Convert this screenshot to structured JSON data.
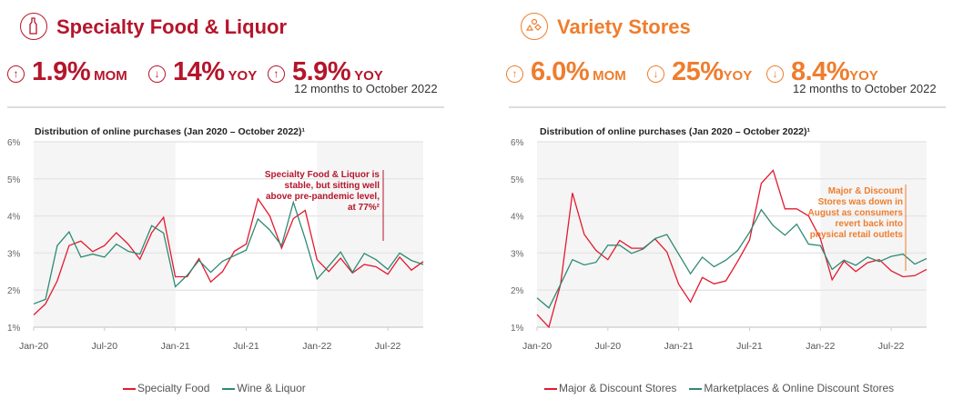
{
  "panels": [
    {
      "title": "Specialty Food & Liquor",
      "icon": "bottle-icon",
      "accent": "#b5152b",
      "stats": [
        {
          "direction": "up",
          "value": "1.9%",
          "unit": "MOM"
        },
        {
          "direction": "down",
          "value": "14%",
          "unit": "YOY"
        },
        {
          "direction": "up",
          "value": "5.9%",
          "unit": "YOY"
        }
      ],
      "stat_note": "12 months to October 2022",
      "chart_title": "Distribution of online purchases (Jan 2020 – October 2022)¹",
      "annotation": "Specialty Food & Liquor is stable, but sitting well above pre-pandemic level, at 77%²",
      "annotation_color": "#b5152b",
      "legend": [
        "Specialty Food",
        "Wine & Liquor"
      ]
    },
    {
      "title": "Variety Stores",
      "icon": "shapes-icon",
      "accent": "#ef7d2d",
      "stats": [
        {
          "direction": "up",
          "value": "6.0%",
          "unit": "MOM"
        },
        {
          "direction": "down",
          "value": "25%",
          "unit": "YOY"
        },
        {
          "direction": "down",
          "value": "8.4%",
          "unit": "YOY"
        }
      ],
      "stat_note": "12 months to October 2022",
      "chart_title": "Distribution of online purchases (Jan 2020 – October 2022)¹",
      "annotation": "Major & Discount Stores was down in August as consumers revert  back into physical retail outlets",
      "annotation_color": "#ef7d2d",
      "legend": [
        "Major & Discount Stores",
        "Marketplaces & Online Discount Stores"
      ]
    }
  ],
  "chart_data": [
    {
      "type": "line",
      "x_start": "Jan-20",
      "x_end": "Oct-22",
      "x_tick_labels": [
        "Jan-20",
        "Jul-20",
        "Jan-21",
        "Jul-21",
        "Jan-22",
        "Jul-22"
      ],
      "y_tick_labels": [
        "1%",
        "2%",
        "3%",
        "4%",
        "5%",
        "6%"
      ],
      "ylim": [
        1,
        6
      ],
      "grid": true,
      "legend_position": "bottom",
      "shaded_periods": [
        [
          "Jan-20",
          "Dec-20"
        ],
        [
          "Jan-22",
          "Oct-22"
        ]
      ],
      "series": [
        {
          "name": "Specialty Food",
          "color": "#e3192f",
          "values": [
            1.33,
            1.63,
            2.25,
            3.2,
            3.32,
            3.04,
            3.2,
            3.55,
            3.24,
            2.83,
            3.55,
            3.96,
            2.36,
            2.36,
            2.85,
            2.22,
            2.5,
            3.05,
            3.24,
            4.46,
            4.0,
            3.13,
            3.93,
            4.15,
            2.82,
            2.5,
            2.86,
            2.46,
            2.69,
            2.63,
            2.43,
            2.89,
            2.54,
            2.77
          ]
        },
        {
          "name": "Wine & Liquor",
          "color": "#2e8a74",
          "values": [
            1.63,
            1.75,
            3.2,
            3.57,
            2.89,
            2.97,
            2.89,
            3.24,
            3.05,
            2.97,
            3.74,
            3.54,
            2.09,
            2.4,
            2.8,
            2.48,
            2.78,
            2.93,
            3.08,
            3.92,
            3.62,
            3.2,
            4.37,
            3.38,
            2.3,
            2.65,
            3.03,
            2.48,
            2.99,
            2.82,
            2.56,
            3.0,
            2.8,
            2.69
          ]
        }
      ]
    },
    {
      "type": "line",
      "x_start": "Jan-20",
      "x_end": "Oct-22",
      "x_tick_labels": [
        "Jan-20",
        "Jul-20",
        "Jan-21",
        "Jul-21",
        "Jan-22",
        "Jul-22"
      ],
      "y_tick_labels": [
        "1%",
        "2%",
        "3%",
        "4%",
        "5%",
        "6%"
      ],
      "ylim": [
        1,
        6
      ],
      "grid": true,
      "legend_position": "bottom",
      "shaded_periods": [
        [
          "Jan-20",
          "Dec-20"
        ],
        [
          "Jan-22",
          "Oct-22"
        ]
      ],
      "series": [
        {
          "name": "Major & Discount Stores",
          "color": "#e3192f",
          "values": [
            1.34,
            1.0,
            2.16,
            4.62,
            3.5,
            3.07,
            2.82,
            3.34,
            3.13,
            3.13,
            3.38,
            3.03,
            2.16,
            1.68,
            2.34,
            2.17,
            2.25,
            2.78,
            3.35,
            4.88,
            5.23,
            4.19,
            4.19,
            4.0,
            3.39,
            2.28,
            2.78,
            2.5,
            2.74,
            2.82,
            2.52,
            2.36,
            2.39,
            2.56
          ]
        },
        {
          "name": "Marketplaces & Online Discount Stores",
          "color": "#2e8a74",
          "values": [
            1.79,
            1.52,
            2.16,
            2.82,
            2.68,
            2.75,
            3.21,
            3.21,
            2.99,
            3.11,
            3.39,
            3.5,
            2.97,
            2.44,
            2.89,
            2.63,
            2.81,
            3.07,
            3.56,
            4.17,
            3.74,
            3.48,
            3.78,
            3.24,
            3.2,
            2.56,
            2.81,
            2.67,
            2.89,
            2.77,
            2.91,
            2.97,
            2.7,
            2.85
          ]
        }
      ]
    }
  ]
}
